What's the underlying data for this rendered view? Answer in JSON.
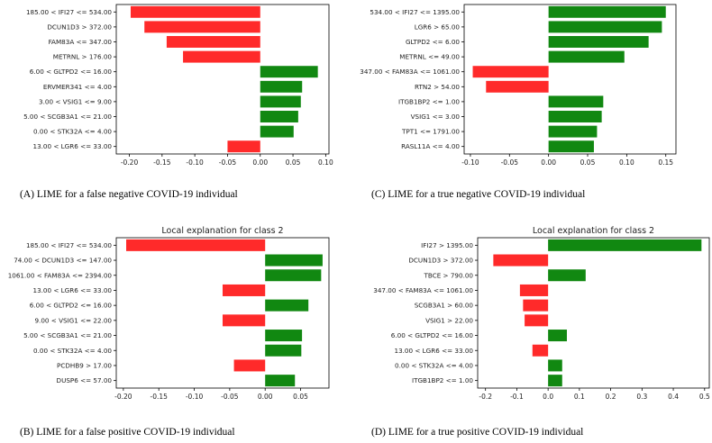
{
  "colors": {
    "positive": "#118811",
    "negative": "#ff2a2a",
    "axis": "#000000"
  },
  "captions": {
    "a": "(A)   LIME for a false negative COVID-19 individual",
    "c": "(C) LIME for a true negative COVID-19 individual",
    "b": "(B) LIME for a false positive COVID-19 individual",
    "d": "(D) LIME for a true positive COVID-19 individual"
  },
  "chart_data": [
    {
      "id": "a",
      "type": "bar",
      "orientation": "horizontal",
      "title": "",
      "categories": [
        "185.00 < IFI27 <= 534.00",
        "DCUN1D3 > 372.00",
        "FAM83A <= 347.00",
        "METRNL > 176.00",
        "6.00 < GLTPD2 <= 16.00",
        "ERVMER341 <= 4.00",
        "3.00 < VSIG1 <= 9.00",
        "5.00 < SCGB3A1 <= 21.00",
        "0.00 < STK32A <= 4.00",
        "13.00 < LGR6 <= 33.00"
      ],
      "values": [
        -0.198,
        -0.177,
        -0.143,
        -0.118,
        0.088,
        0.064,
        0.062,
        0.058,
        0.051,
        -0.05
      ],
      "xlim": [
        -0.22,
        0.105
      ],
      "xticks": [
        -0.2,
        -0.15,
        -0.1,
        -0.05,
        0.0,
        0.05,
        0.1
      ],
      "xtick_labels": [
        "-0.20",
        "-0.15",
        "-0.10",
        "-0.05",
        "0.00",
        "0.05",
        "0.10"
      ]
    },
    {
      "id": "c",
      "type": "bar",
      "orientation": "horizontal",
      "title": "",
      "categories": [
        "534.00 < IFI27 <= 1395.00",
        "LGR6 > 65.00",
        "GLTPD2 <= 6.00",
        "METRNL <= 49.00",
        "347.00 < FAM83A <= 1061.00",
        "RTN2 > 54.00",
        "ITGB1BP2 <= 1.00",
        "VSIG1 <= 3.00",
        "TPT1 <= 1791.00",
        "RASL11A <= 4.00"
      ],
      "values": [
        0.15,
        0.145,
        0.128,
        0.097,
        -0.097,
        -0.08,
        0.07,
        0.068,
        0.062,
        0.058
      ],
      "xlim": [
        -0.108,
        0.163
      ],
      "xticks": [
        -0.1,
        -0.05,
        0.0,
        0.05,
        0.1,
        0.15
      ],
      "xtick_labels": [
        "-0.10",
        "-0.05",
        "0.00",
        "0.05",
        "0.10",
        "0.15"
      ]
    },
    {
      "id": "b",
      "type": "bar",
      "orientation": "horizontal",
      "title": "Local explanation for class 2",
      "categories": [
        "185.00 < IFI27 <= 534.00",
        "74.00 < DCUN1D3 <= 147.00",
        "1061.00 < FAM83A <= 2394.00",
        "13.00 < LGR6 <= 33.00",
        "6.00 < GLTPD2 <= 16.00",
        "9.00 < VSIG1 <= 22.00",
        "5.00 < SCGB3A1 <= 21.00",
        "0.00 < STK32A <= 4.00",
        "PCDHB9 > 17.00",
        "DUSP6 <= 57.00"
      ],
      "values": [
        -0.196,
        0.081,
        0.079,
        -0.06,
        0.061,
        -0.06,
        0.052,
        0.051,
        -0.044,
        0.042
      ],
      "xlim": [
        -0.21,
        0.09
      ],
      "xticks": [
        -0.2,
        -0.15,
        -0.1,
        -0.05,
        0.0,
        0.05
      ],
      "xtick_labels": [
        "-0.20",
        "-0.15",
        "-0.10",
        "-0.05",
        "0.00",
        "0.05"
      ]
    },
    {
      "id": "d",
      "type": "bar",
      "orientation": "horizontal",
      "title": "Local explanation for class 2",
      "categories": [
        "IFI27 > 1395.00",
        "DCUN1D3 > 372.00",
        "TBCE > 790.00",
        "347.00 < FAM83A <= 1061.00",
        "SCGB3A1 > 60.00",
        "VSIG1 > 22.00",
        "6.00 < GLTPD2 <= 16.00",
        "13.00 < LGR6 <= 33.00",
        "0.00 < STK32A <= 4.00",
        "ITGB1BP2 <= 1.00"
      ],
      "values": [
        0.49,
        -0.175,
        0.12,
        -0.09,
        -0.08,
        -0.075,
        0.06,
        -0.05,
        0.045,
        0.045
      ],
      "xlim": [
        -0.225,
        0.515
      ],
      "xticks": [
        -0.2,
        -0.1,
        0.0,
        0.1,
        0.2,
        0.3,
        0.4,
        0.5
      ],
      "xtick_labels": [
        "-0.2",
        "-0.1",
        "0.0",
        "0.1",
        "0.2",
        "0.3",
        "0.4",
        "0.5"
      ]
    }
  ]
}
